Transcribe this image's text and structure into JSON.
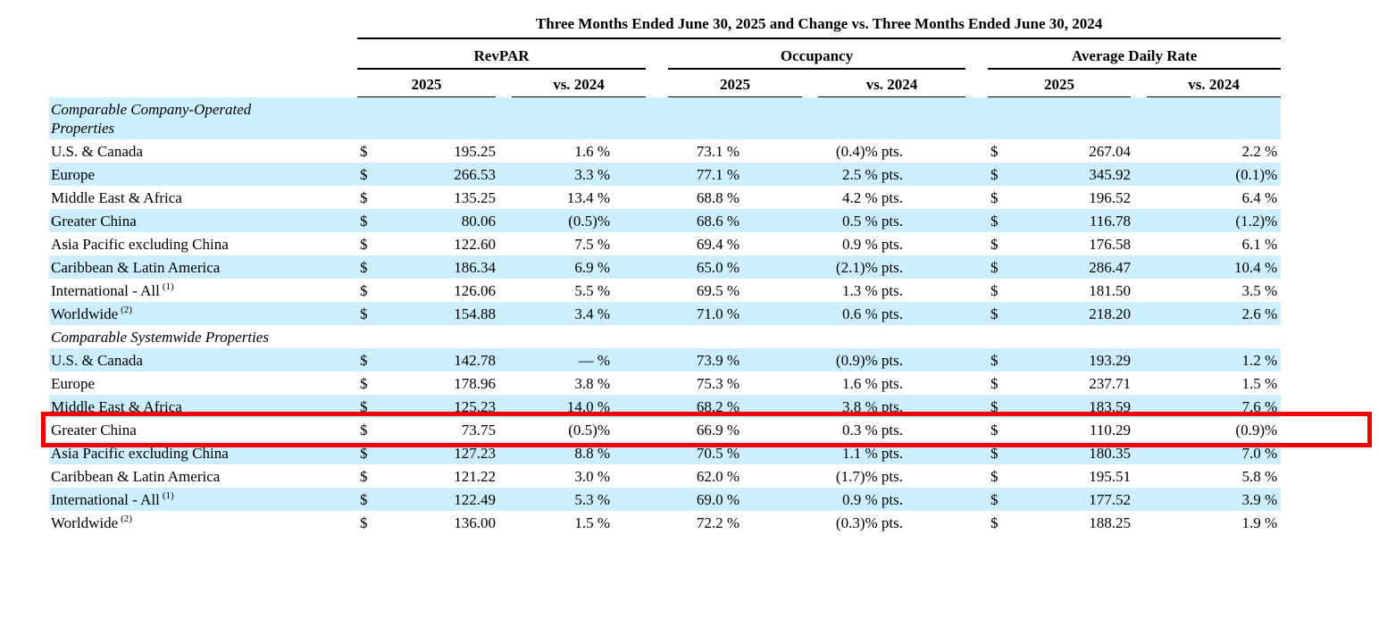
{
  "title": "Three Months Ended June 30, 2025 and Change vs. Three Months Ended June 30, 2024",
  "groups": [
    "RevPAR",
    "Occupancy",
    "Average Daily Rate"
  ],
  "sub": {
    "y2025": "2025",
    "vs": "vs. 2024"
  },
  "colors": {
    "stripe": "#cceeff",
    "highlight": "#f20000"
  },
  "sections": [
    {
      "header": "Comparable Company-Operated Properties",
      "rows": [
        {
          "label": "U.S. & Canada",
          "rp_cur": "$",
          "rp_2025": "195.25",
          "rp_vs": "1.6 %",
          "occ_2025": "73.1 %",
          "occ_vs": "(0.4)% pts.",
          "adr_cur": "$",
          "adr_2025": "267.04",
          "adr_vs": "2.2 %"
        },
        {
          "label": "Europe",
          "rp_cur": "$",
          "rp_2025": "266.53",
          "rp_vs": "3.3 %",
          "occ_2025": "77.1 %",
          "occ_vs": "2.5 % pts.",
          "adr_cur": "$",
          "adr_2025": "345.92",
          "adr_vs": "(0.1)%"
        },
        {
          "label": "Middle East & Africa",
          "rp_cur": "$",
          "rp_2025": "135.25",
          "rp_vs": "13.4 %",
          "occ_2025": "68.8 %",
          "occ_vs": "4.2 % pts.",
          "adr_cur": "$",
          "adr_2025": "196.52",
          "adr_vs": "6.4 %"
        },
        {
          "label": "Greater China",
          "rp_cur": "$",
          "rp_2025": "80.06",
          "rp_vs": "(0.5)%",
          "occ_2025": "68.6 %",
          "occ_vs": "0.5 % pts.",
          "adr_cur": "$",
          "adr_2025": "116.78",
          "adr_vs": "(1.2)%"
        },
        {
          "label": "Asia Pacific excluding China",
          "rp_cur": "$",
          "rp_2025": "122.60",
          "rp_vs": "7.5 %",
          "occ_2025": "69.4 %",
          "occ_vs": "0.9 % pts.",
          "adr_cur": "$",
          "adr_2025": "176.58",
          "adr_vs": "6.1 %"
        },
        {
          "label": "Caribbean & Latin America",
          "rp_cur": "$",
          "rp_2025": "186.34",
          "rp_vs": "6.9 %",
          "occ_2025": "65.0 %",
          "occ_vs": "(2.1)% pts.",
          "adr_cur": "$",
          "adr_2025": "286.47",
          "adr_vs": "10.4 %"
        },
        {
          "label": "International - All",
          "sup": "(1)",
          "rp_cur": "$",
          "rp_2025": "126.06",
          "rp_vs": "5.5 %",
          "occ_2025": "69.5 %",
          "occ_vs": "1.3 % pts.",
          "adr_cur": "$",
          "adr_2025": "181.50",
          "adr_vs": "3.5 %"
        },
        {
          "label": "Worldwide",
          "sup": "(2)",
          "rp_cur": "$",
          "rp_2025": "154.88",
          "rp_vs": "3.4 %",
          "occ_2025": "71.0 %",
          "occ_vs": "0.6 % pts.",
          "adr_cur": "$",
          "adr_2025": "218.20",
          "adr_vs": "2.6 %"
        }
      ]
    },
    {
      "header": "Comparable Systemwide Properties",
      "rows": [
        {
          "label": "U.S. & Canada",
          "rp_cur": "$",
          "rp_2025": "142.78",
          "rp_vs": "— %",
          "occ_2025": "73.9 %",
          "occ_vs": "(0.9)% pts.",
          "adr_cur": "$",
          "adr_2025": "193.29",
          "adr_vs": "1.2 %"
        },
        {
          "label": "Europe",
          "rp_cur": "$",
          "rp_2025": "178.96",
          "rp_vs": "3.8 %",
          "occ_2025": "75.3 %",
          "occ_vs": "1.6 % pts.",
          "adr_cur": "$",
          "adr_2025": "237.71",
          "adr_vs": "1.5 %"
        },
        {
          "label": "Middle East & Africa",
          "rp_cur": "$",
          "rp_2025": "125.23",
          "rp_vs": "14.0 %",
          "occ_2025": "68.2 %",
          "occ_vs": "3.8 % pts.",
          "adr_cur": "$",
          "adr_2025": "183.59",
          "adr_vs": "7.6 %"
        },
        {
          "label": "Greater China",
          "highlight": true,
          "rp_cur": "$",
          "rp_2025": "73.75",
          "rp_vs": "(0.5)%",
          "occ_2025": "66.9 %",
          "occ_vs": "0.3 % pts.",
          "adr_cur": "$",
          "adr_2025": "110.29",
          "adr_vs": "(0.9)%"
        },
        {
          "label": "Asia Pacific excluding China",
          "rp_cur": "$",
          "rp_2025": "127.23",
          "rp_vs": "8.8 %",
          "occ_2025": "70.5 %",
          "occ_vs": "1.1 % pts.",
          "adr_cur": "$",
          "adr_2025": "180.35",
          "adr_vs": "7.0 %"
        },
        {
          "label": "Caribbean & Latin America",
          "rp_cur": "$",
          "rp_2025": "121.22",
          "rp_vs": "3.0 %",
          "occ_2025": "62.0 %",
          "occ_vs": "(1.7)% pts.",
          "adr_cur": "$",
          "adr_2025": "195.51",
          "adr_vs": "5.8 %"
        },
        {
          "label": "International - All",
          "sup": "(1)",
          "rp_cur": "$",
          "rp_2025": "122.49",
          "rp_vs": "5.3 %",
          "occ_2025": "69.0 %",
          "occ_vs": "0.9 % pts.",
          "adr_cur": "$",
          "adr_2025": "177.52",
          "adr_vs": "3.9 %"
        },
        {
          "label": "Worldwide",
          "sup": "(2)",
          "rp_cur": "$",
          "rp_2025": "136.00",
          "rp_vs": "1.5 %",
          "occ_2025": "72.2 %",
          "occ_vs": "(0.3)% pts.",
          "adr_cur": "$",
          "adr_2025": "188.25",
          "adr_vs": "1.9 %"
        }
      ]
    }
  ]
}
